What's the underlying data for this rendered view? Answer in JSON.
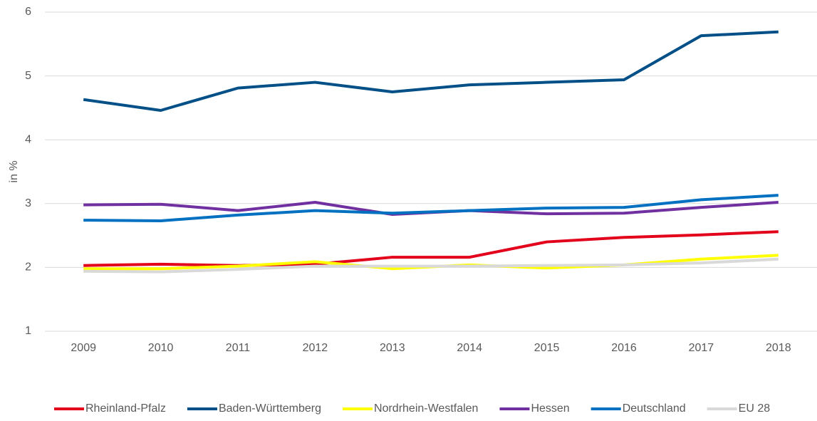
{
  "chart_data": {
    "type": "line",
    "y_label": "in %",
    "categories": [
      "2009",
      "2010",
      "2011",
      "2012",
      "2013",
      "2014",
      "2015",
      "2016",
      "2017",
      "2018"
    ],
    "series": [
      {
        "name": "Rheinland-Pfalz",
        "color": "#e3001b",
        "values": [
          2.03,
          2.05,
          2.03,
          2.05,
          2.16,
          2.16,
          2.4,
          2.47,
          2.51,
          2.56
        ]
      },
      {
        "name": "Baden-Württemberg",
        "color": "#004f86",
        "values": [
          4.63,
          4.46,
          4.81,
          4.9,
          4.75,
          4.86,
          4.9,
          4.94,
          5.63,
          5.69
        ]
      },
      {
        "name": "Nordrhein-Westfalen",
        "color": "#ffff00",
        "values": [
          1.98,
          1.98,
          2.02,
          2.09,
          1.98,
          2.04,
          1.99,
          2.04,
          2.13,
          2.19
        ]
      },
      {
        "name": "Hessen",
        "color": "#7030a0",
        "values": [
          2.98,
          2.99,
          2.89,
          3.02,
          2.83,
          2.89,
          2.84,
          2.85,
          2.94,
          3.02
        ]
      },
      {
        "name": "Deutschland",
        "color": "#0070c0",
        "values": [
          2.74,
          2.73,
          2.82,
          2.89,
          2.85,
          2.89,
          2.93,
          2.94,
          3.06,
          3.13
        ]
      },
      {
        "name": "EU 28",
        "color": "#d9d9d9",
        "values": [
          1.94,
          1.93,
          1.97,
          2.02,
          2.02,
          2.02,
          2.03,
          2.04,
          2.07,
          2.13
        ]
      }
    ],
    "ylim": [
      1,
      6
    ],
    "yticks": [
      1,
      2,
      3,
      4,
      5,
      6
    ],
    "grid": true,
    "legend": "bottom"
  }
}
